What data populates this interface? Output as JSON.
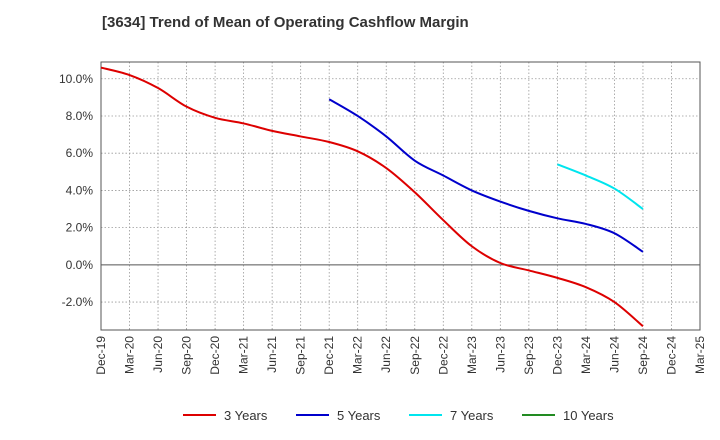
{
  "chart_data": {
    "type": "line",
    "title": "[3634]  Trend of Mean of Operating Cashflow Margin",
    "xlabel": "",
    "ylabel": "",
    "x": [
      "Dec-19",
      "Mar-20",
      "Jun-20",
      "Sep-20",
      "Dec-20",
      "Mar-21",
      "Jun-21",
      "Sep-21",
      "Dec-21",
      "Mar-22",
      "Jun-22",
      "Sep-22",
      "Dec-22",
      "Mar-23",
      "Jun-23",
      "Sep-23",
      "Dec-23",
      "Mar-24",
      "Jun-24",
      "Sep-24",
      "Dec-24",
      "Mar-25"
    ],
    "yticks": [
      "10.0%",
      "8.0%",
      "6.0%",
      "4.0%",
      "2.0%",
      "0.0%",
      "-2.0%"
    ],
    "ylim": [
      -3.5,
      10.9
    ],
    "grid": true,
    "legend_position": "bottom",
    "series": [
      {
        "name": "3 Years",
        "color": "#dd0000",
        "values": [
          10.6,
          10.2,
          9.5,
          8.5,
          7.9,
          7.6,
          7.2,
          6.9,
          6.6,
          6.1,
          5.2,
          3.9,
          2.4,
          1.0,
          0.1,
          -0.3,
          -0.7,
          -1.2,
          -2.0,
          -3.3,
          null,
          null
        ]
      },
      {
        "name": "5 Years",
        "color": "#0000cc",
        "values": [
          null,
          null,
          null,
          null,
          null,
          null,
          null,
          null,
          8.9,
          8.0,
          6.9,
          5.6,
          4.8,
          4.0,
          3.4,
          2.9,
          2.5,
          2.2,
          1.7,
          0.7,
          null,
          null
        ]
      },
      {
        "name": "7 Years",
        "color": "#00e5ee",
        "values": [
          null,
          null,
          null,
          null,
          null,
          null,
          null,
          null,
          null,
          null,
          null,
          null,
          null,
          null,
          null,
          null,
          5.4,
          4.8,
          4.1,
          3.0,
          null,
          null
        ]
      },
      {
        "name": "10 Years",
        "color": "#228b22",
        "values": [
          null,
          null,
          null,
          null,
          null,
          null,
          null,
          null,
          null,
          null,
          null,
          null,
          null,
          null,
          null,
          null,
          null,
          null,
          null,
          null,
          null,
          null
        ]
      }
    ]
  }
}
